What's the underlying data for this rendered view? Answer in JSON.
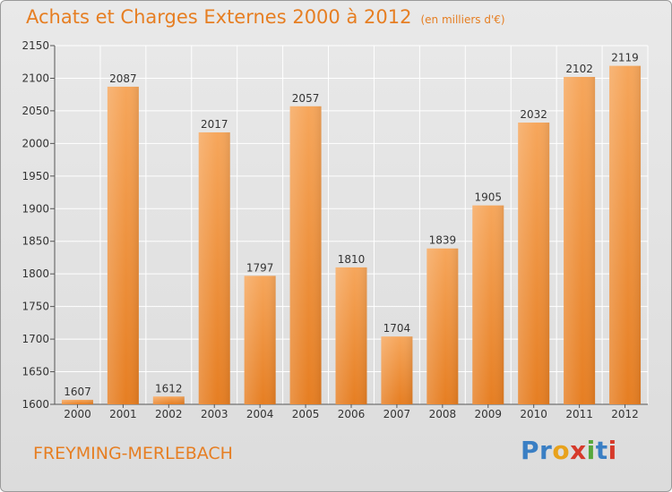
{
  "header": {
    "title": "Achats et Charges Externes 2000 à 2012",
    "subtitle": "(en milliers d'€)"
  },
  "footer": {
    "commune": "FREYMING-MERLEBACH",
    "logo_text": "Proxiti",
    "logo_colors": [
      "#3a7fc4",
      "#3a7fc4",
      "#e8a21c",
      "#d63a2b",
      "#56a83c",
      "#3a7fc4",
      "#d63a2b"
    ]
  },
  "colors": {
    "bar_light": "#f6a65b",
    "bar_dark": "#e67e22",
    "accent": "#e67e22"
  },
  "chart_data": {
    "type": "bar",
    "categories": [
      "2000",
      "2001",
      "2002",
      "2003",
      "2004",
      "2005",
      "2006",
      "2007",
      "2008",
      "2009",
      "2010",
      "2011",
      "2012"
    ],
    "values": [
      1607,
      2087,
      1612,
      2017,
      1797,
      2057,
      1810,
      1704,
      1839,
      1905,
      2032,
      2102,
      2119
    ],
    "ylim": [
      1600,
      2150
    ],
    "yticks": [
      1600,
      1650,
      1700,
      1750,
      1800,
      1850,
      1900,
      1950,
      2000,
      2050,
      2100,
      2150
    ],
    "grid": true,
    "legend": "none",
    "data_labels": true
  }
}
